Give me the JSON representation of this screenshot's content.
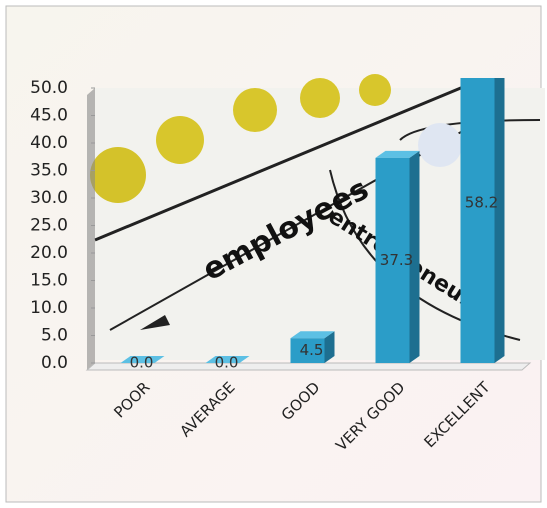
{
  "chart_data": {
    "type": "bar3d",
    "categories": [
      "POOR",
      "AVERAGE",
      "GOOD",
      "VERY GOOD",
      "EXCELLENT"
    ],
    "values": [
      0,
      0,
      4.5,
      37.3,
      58.2
    ],
    "value_labels": [
      "0.0",
      "0.0",
      "4.5",
      "37.3",
      "58.2"
    ],
    "color": "#2b9dc8",
    "ylim": [
      0,
      50
    ],
    "yticks": [
      {
        "value": 0,
        "label": "0.0"
      },
      {
        "value": 5,
        "label": "5.0"
      },
      {
        "value": 10,
        "label": "10.0"
      },
      {
        "value": 15,
        "label": "15.0"
      },
      {
        "value": 20,
        "label": "20.0"
      },
      {
        "value": 25,
        "label": "25.0"
      },
      {
        "value": 30,
        "label": "30.0"
      },
      {
        "value": 35,
        "label": "35.0"
      },
      {
        "value": 40,
        "label": "40.0"
      },
      {
        "value": 45,
        "label": "45.0"
      },
      {
        "value": 50,
        "label": "50.0"
      }
    ],
    "annotations": [
      "employees",
      "entrepreneur"
    ]
  }
}
